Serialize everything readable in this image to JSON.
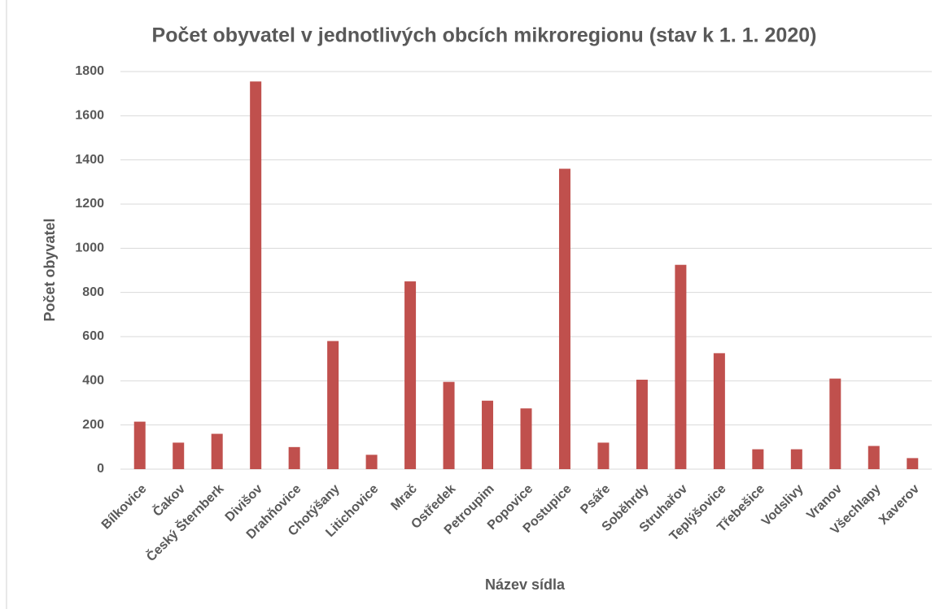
{
  "chart_data": {
    "type": "bar",
    "title": "Počet obyvatel v jednotlivých obcích mikroregionu (stav k 1. 1. 2020)",
    "x_label": "Název sídla",
    "y_label": "Počet obyvatel",
    "categories": [
      "Bílkovice",
      "Čakov",
      "Český Šternberk",
      "Divišov",
      "Drahňovice",
      "Chotýšany",
      "Litichovice",
      "Mrač",
      "Ostředek",
      "Petroupim",
      "Popovice",
      "Postupice",
      "Psáře",
      "Soběhrdy",
      "Struhařov",
      "Teplýšovice",
      "Třebešice",
      "Vodslivy",
      "Vranov",
      "Všechlapy",
      "Xaverov"
    ],
    "values": [
      215,
      120,
      160,
      1755,
      100,
      580,
      65,
      850,
      395,
      310,
      275,
      1360,
      120,
      405,
      925,
      525,
      90,
      90,
      410,
      105,
      50
    ],
    "color": "#c0504d",
    "ylim": [
      0,
      1800
    ],
    "yticks": [
      0,
      200,
      400,
      600,
      800,
      1000,
      1200,
      1400,
      1600,
      1800
    ],
    "grid": true
  }
}
